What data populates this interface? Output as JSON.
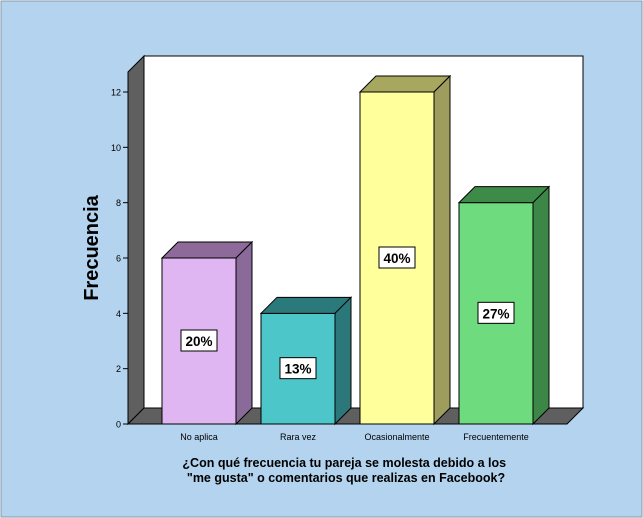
{
  "chart_data": {
    "type": "bar",
    "style": "3d",
    "categories": [
      "No aplica",
      "Rara vez",
      "Ocasionalmente",
      "Frecuentemente"
    ],
    "values": [
      6,
      4,
      12,
      8
    ],
    "data_labels": [
      "20%",
      "13%",
      "40%",
      "27%"
    ],
    "ylabel": "Frecuencia",
    "xlabel": "¿Con qué frecuencia tu pareja se molesta debido a los \"me gusta\" o comentarios que realizas en Facebook?",
    "xlabel_lines": [
      "¿Con qué frecuencia tu pareja se molesta debido a los",
      "\"me gusta\" o comentarios que realizas en Facebook?"
    ],
    "ylim": [
      0,
      12
    ],
    "yticks": [
      0,
      2,
      4,
      6,
      8,
      10,
      12
    ],
    "grid": false,
    "legend": "none",
    "colors": {
      "background": "#b3d3ee",
      "plot_back_wall": "#ffffff",
      "plot_side_wall": "#5f5f5f",
      "plot_floor": "#5f5f5f",
      "bars": [
        "#e0b6f2",
        "#4cc6c8",
        "#ffff9b",
        "#6ddb7e"
      ],
      "bar_tops": [
        "#8d6a9a",
        "#2b7a7b",
        "#a7a760",
        "#3e8a48"
      ],
      "bar_sides": [
        "#8a6a98",
        "#2c7779",
        "#9e9d5e",
        "#3c8747"
      ]
    }
  }
}
